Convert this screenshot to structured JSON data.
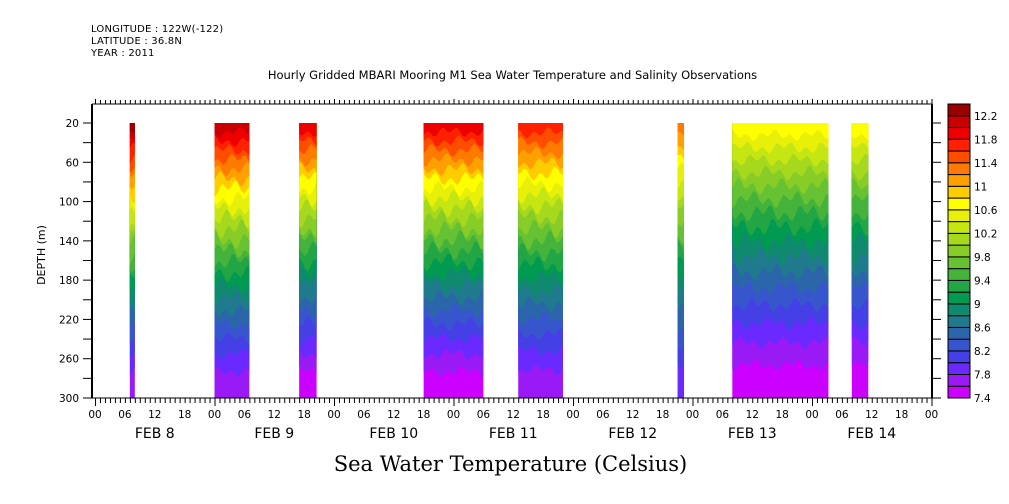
{
  "header": {
    "longitude": "LONGITUDE : 122W(-122)",
    "latitude": "LATITUDE : 36.8N",
    "year": "YEAR : 2011"
  },
  "colors": {
    "levels": [
      "#cc00ff",
      "#9a1af5",
      "#6a2aff",
      "#4540e6",
      "#3755cc",
      "#2b66aa",
      "#1e7a8c",
      "#108a6e",
      "#009a50",
      "#22a544",
      "#45b23c",
      "#66c232",
      "#88cc28",
      "#a6d81e",
      "#c6e614",
      "#e8f00a",
      "#ffff00",
      "#ffcc00",
      "#ffa000",
      "#ff7a00",
      "#ff4d00",
      "#ff2000",
      "#ee0000",
      "#c80000",
      "#9a0000"
    ]
  },
  "chart_data": {
    "type": "heatmap",
    "title": "Hourly Gridded MBARI Mooring M1 Sea Water Temperature and Salinity Observations",
    "bottom_title": "Sea Water Temperature (Celsius)",
    "ylabel": "DEPTH (m)",
    "xlabel": "",
    "ylim": [
      300,
      0
    ],
    "y_ticks": [
      "20",
      "60",
      "100",
      "140",
      "180",
      "220",
      "260",
      "300"
    ],
    "x_hour_labels": [
      "00",
      "06",
      "12",
      "18",
      "00",
      "06",
      "12",
      "18",
      "00",
      "06",
      "12",
      "18",
      "00",
      "06",
      "12",
      "18",
      "00",
      "06",
      "12",
      "18",
      "00",
      "06",
      "12",
      "18",
      "00",
      "06",
      "12",
      "18",
      "00"
    ],
    "x_day_labels": [
      "FEB  8",
      "FEB  9",
      "FEB 10",
      "FEB 11",
      "FEB 12",
      "FEB 13",
      "FEB 14"
    ],
    "xlim_hours": [
      0,
      168
    ],
    "colorbar": {
      "labels": [
        "12.2",
        "11.8",
        "11.4",
        "11",
        "10.6",
        "10.2",
        "9.8",
        "9.4",
        "9",
        "8.6",
        "8.2",
        "7.8",
        "7.4"
      ],
      "min": 7.4,
      "max": 12.6,
      "step": 0.2
    },
    "data_segments": [
      {
        "start_hour": 7,
        "end_hour": 8,
        "surface_temp": 12.2,
        "bottom_temp": 7.7
      },
      {
        "start_hour": 24,
        "end_hour": 31,
        "surface_temp": 12.0,
        "bottom_temp": 7.6
      },
      {
        "start_hour": 41,
        "end_hour": 44.5,
        "surface_temp": 11.8,
        "bottom_temp": 7.4
      },
      {
        "start_hour": 66,
        "end_hour": 78,
        "surface_temp": 11.8,
        "bottom_temp": 7.5
      },
      {
        "start_hour": 85,
        "end_hour": 94,
        "surface_temp": 11.6,
        "bottom_temp": 7.6
      },
      {
        "start_hour": 117,
        "end_hour": 118.3,
        "surface_temp": 11.2,
        "bottom_temp": 7.8
      },
      {
        "start_hour": 128,
        "end_hour": 147.3,
        "surface_temp": 10.6,
        "bottom_temp": 7.4
      },
      {
        "start_hour": 152,
        "end_hour": 155.3,
        "surface_temp": 10.6,
        "bottom_temp": 7.4
      }
    ]
  }
}
